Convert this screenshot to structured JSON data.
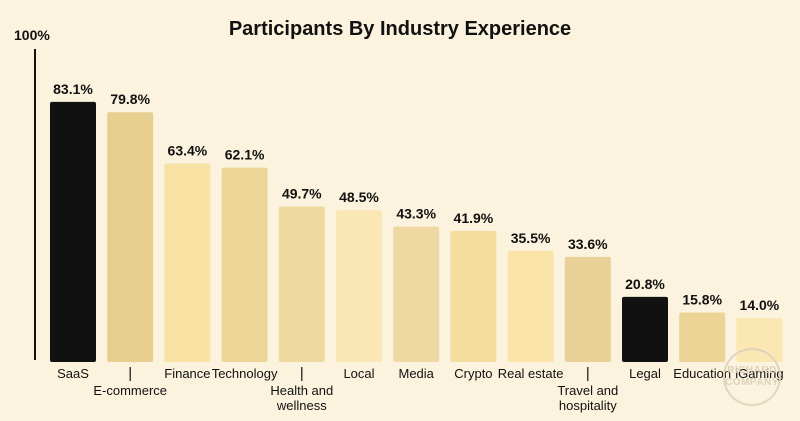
{
  "chart_data": {
    "type": "bar",
    "title": "Participants By Industry Experience",
    "ylabel": "",
    "xlabel": "",
    "ylim": [
      0,
      100
    ],
    "y_max_label": "100%",
    "categories": [
      [
        "SaaS"
      ],
      [
        "E-commerce"
      ],
      [
        "Finance"
      ],
      [
        "Technology"
      ],
      [
        "Health and",
        "wellness"
      ],
      [
        "Local"
      ],
      [
        "Media"
      ],
      [
        "Crypto"
      ],
      [
        "Real estate"
      ],
      [
        "Travel and",
        "hospitality"
      ],
      [
        "Legal"
      ],
      [
        "Education"
      ],
      [
        "iGaming"
      ]
    ],
    "values": [
      83.1,
      79.8,
      63.4,
      62.1,
      49.7,
      48.5,
      43.3,
      41.9,
      35.5,
      33.6,
      20.8,
      15.8,
      14.0
    ],
    "value_labels": [
      "83.1%",
      "79.8%",
      "63.4%",
      "62.1%",
      "49.7%",
      "48.5%",
      "43.3%",
      "41.9%",
      "35.5%",
      "33.6%",
      "20.8%",
      "15.8%",
      "14.0%"
    ],
    "colors": [
      "#111111",
      "#e7cf8f",
      "#f8e3a5",
      "#ecd596",
      "#eed9a1",
      "#fbe7b4",
      "#efd9a3",
      "#f2dd9e",
      "#fae4a9",
      "#e8d096",
      "#111111",
      "#ebd495",
      "#fae7b2"
    ],
    "label_positions": [
      "below",
      "below-offset",
      "below",
      "below",
      "below-offset",
      "below",
      "below",
      "below",
      "below",
      "below-offset",
      "below",
      "below",
      "below"
    ],
    "grid": false,
    "legend": "none"
  },
  "watermark": {
    "lines": [
      "RICHARD",
      "COMPANY"
    ]
  }
}
